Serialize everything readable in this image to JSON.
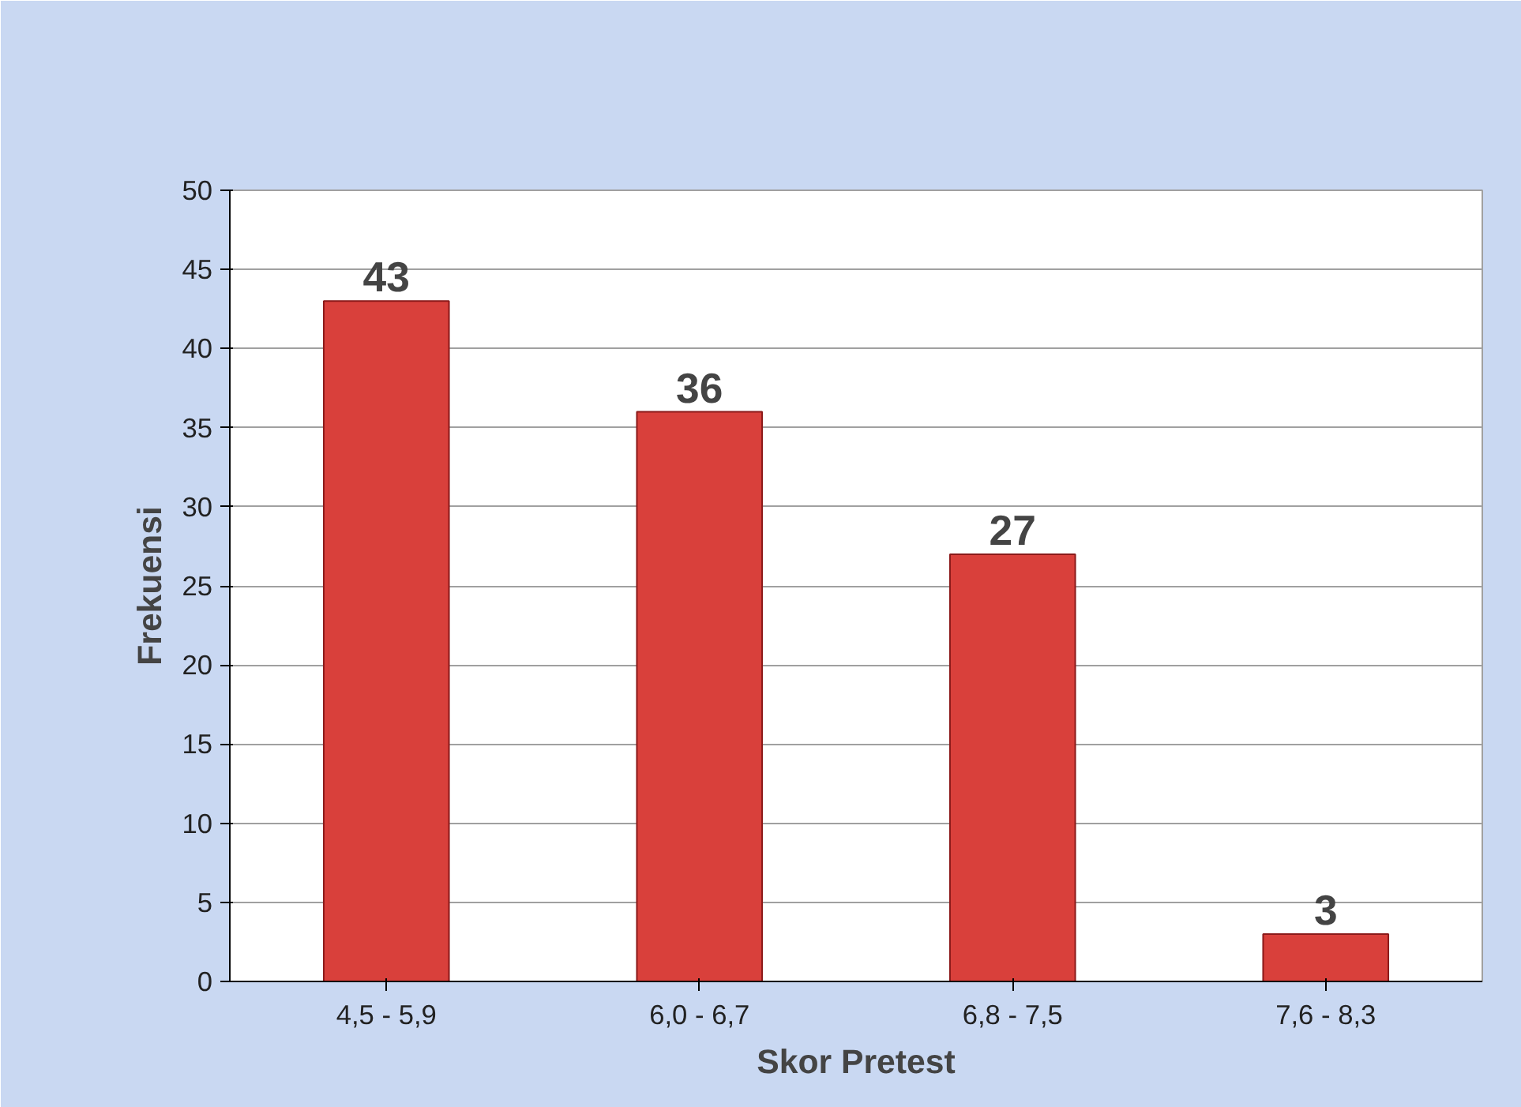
{
  "chart_data": {
    "type": "bar",
    "xlabel": "Skor Pretest",
    "ylabel": "Frekuensi",
    "categories": [
      "4,5 - 5,9",
      "6,0 - 6,7",
      "6,8 - 7,5",
      "7,6 - 8,3"
    ],
    "values": [
      43,
      36,
      27,
      3
    ],
    "color": "#d9403b",
    "ylim": [
      0,
      50
    ],
    "yticks": [
      0,
      5,
      10,
      15,
      20,
      25,
      30,
      35,
      40,
      45,
      50
    ],
    "grid": "y",
    "data_labels": true
  }
}
